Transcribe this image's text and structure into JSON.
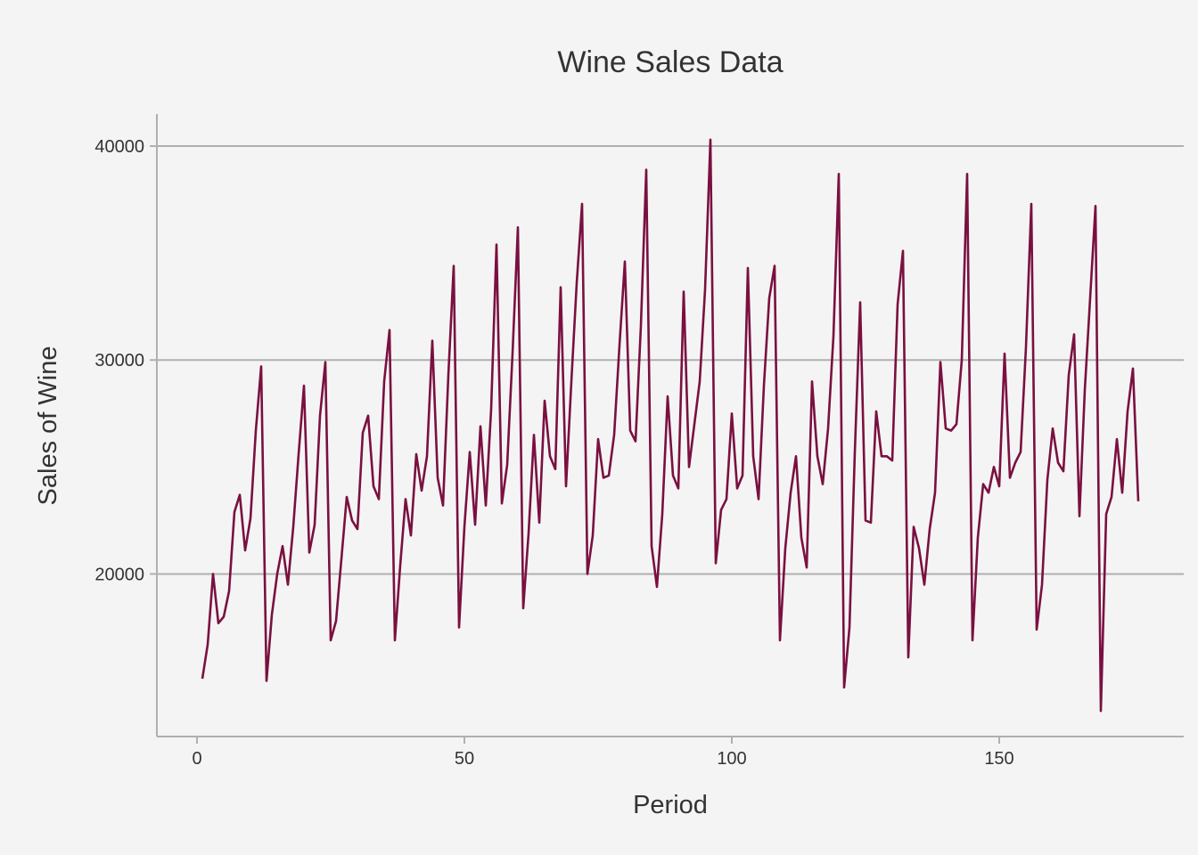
{
  "chart_data": {
    "type": "line",
    "title": "Wine Sales Data",
    "xlabel": "Period",
    "ylabel": "Sales of Wine",
    "xlim": [
      -7.5,
      184.5
    ],
    "ylim": [
      12400,
      41500
    ],
    "xticks": [
      0,
      50,
      100,
      150
    ],
    "xtick_labels": [
      "0",
      "50",
      "100",
      "150"
    ],
    "yticks": [
      20000,
      30000,
      40000
    ],
    "ytick_labels": [
      "20000",
      "30000",
      "40000"
    ],
    "grid": "horizontal major",
    "line_color": "#7a1040",
    "grid_color": "#b0b0b0",
    "axis_color": "#b0b0b0",
    "series": [
      {
        "x": [
          1,
          2,
          3,
          4,
          5,
          6,
          7,
          8,
          9,
          10,
          11,
          12,
          13,
          14,
          15,
          16,
          17,
          18,
          19,
          20,
          21,
          22,
          23,
          24,
          25,
          26,
          27,
          28,
          29,
          30,
          31,
          32,
          33,
          34,
          35,
          36,
          37,
          38,
          39,
          40,
          41,
          42,
          43,
          44,
          45,
          46,
          47,
          48,
          49,
          50,
          51,
          52,
          53,
          54,
          55,
          56,
          57,
          58,
          59,
          60,
          61,
          62,
          63,
          64,
          65,
          66,
          67,
          68,
          69,
          70,
          71,
          72,
          73,
          74,
          75,
          76,
          77,
          78,
          79,
          80,
          81,
          82,
          83,
          84,
          85,
          86,
          87,
          88,
          89,
          90,
          91,
          92,
          93,
          94,
          95,
          96,
          97,
          98,
          99,
          100,
          101,
          102,
          103,
          104,
          105,
          106,
          107,
          108,
          109,
          110,
          111,
          112,
          113,
          114,
          115,
          116,
          117,
          118,
          119,
          120,
          121,
          122,
          123,
          124,
          125,
          126,
          127,
          128,
          129,
          130,
          131,
          132,
          133,
          134,
          135,
          136,
          137,
          138,
          139,
          140,
          141,
          142,
          143,
          144,
          145,
          146,
          147,
          148,
          149,
          150,
          151,
          152,
          153,
          154,
          155,
          156,
          157,
          158,
          159,
          160,
          161,
          162,
          163,
          164,
          165,
          166,
          167,
          168,
          169,
          170,
          171,
          172,
          173,
          174,
          175,
          176
        ],
        "values": [
          15100,
          16700,
          20000,
          17700,
          18000,
          19200,
          22900,
          23700,
          21100,
          22600,
          26700,
          29700,
          15000,
          18100,
          20000,
          21300,
          19500,
          22200,
          25600,
          28800,
          21000,
          22300,
          27400,
          29900,
          16900,
          17800,
          20700,
          23600,
          22500,
          22100,
          26600,
          27400,
          24100,
          23500,
          29000,
          31400,
          16900,
          20400,
          23500,
          21800,
          25600,
          23900,
          25500,
          30900,
          24500,
          23200,
          29300,
          34400,
          17500,
          22200,
          25700,
          22300,
          26900,
          23200,
          27700,
          35400,
          23300,
          25100,
          30300,
          36200,
          18400,
          21900,
          26500,
          22400,
          28100,
          25500,
          24900,
          33400,
          24100,
          29000,
          33600,
          37300,
          20000,
          21800,
          26300,
          24500,
          24600,
          26500,
          30700,
          34600,
          26700,
          26200,
          31600,
          38900,
          21300,
          19400,
          22800,
          28300,
          24600,
          24000,
          33200,
          25000,
          27000,
          29000,
          33300,
          40300,
          20500,
          23000,
          23500,
          27500,
          24000,
          24600,
          34300,
          25500,
          23500,
          28800,
          32900,
          34400,
          16900,
          21200,
          23800,
          25500,
          21700,
          20300,
          29000,
          25500,
          24200,
          26800,
          31100,
          38700,
          14700,
          17500,
          25700,
          32700,
          22500,
          22400,
          27600,
          25500,
          25500,
          25300,
          32600,
          35100,
          16100,
          22200,
          21200,
          19500,
          22100,
          23800,
          29900,
          26800,
          26700,
          27000,
          30000,
          38700,
          16900,
          21700,
          24200,
          23800,
          25000,
          24100,
          30300,
          24500,
          25200,
          25700,
          30600,
          37300,
          17400,
          19500,
          24400,
          26800,
          25200,
          24800,
          29300,
          31200,
          22700,
          28600,
          32900,
          37200,
          13600,
          22800,
          23600,
          26300,
          23800,
          27600,
          29600,
          23400
        ]
      }
    ]
  }
}
